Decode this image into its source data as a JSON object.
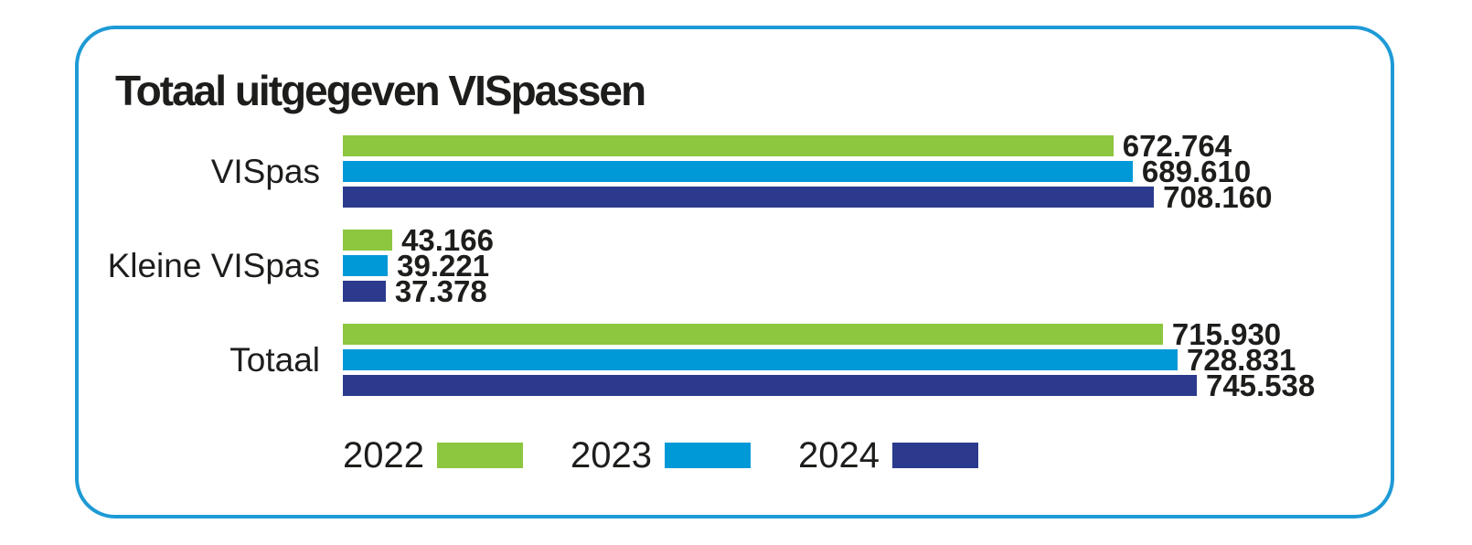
{
  "title": "Totaal uitgegeven VISpassen",
  "card": {
    "border_color": "#1e9ad6"
  },
  "chart_data": {
    "type": "bar",
    "orientation": "horizontal",
    "title": "Totaal uitgegeven VISpassen",
    "categories": [
      "VISpas",
      "Kleine VISpas",
      "Totaal"
    ],
    "series": [
      {
        "name": "2022",
        "color": "#8dc63f",
        "values": [
          672764,
          43166,
          715930
        ],
        "labels": [
          "672.764",
          "43.166",
          "715.930"
        ]
      },
      {
        "name": "2023",
        "color": "#0099d8",
        "values": [
          689610,
          39221,
          728831
        ],
        "labels": [
          "689.610",
          "39.221",
          "728.831"
        ]
      },
      {
        "name": "2024",
        "color": "#2b3a8d",
        "values": [
          708160,
          37378,
          745538
        ],
        "labels": [
          "708.160",
          "37.378",
          "745.538"
        ]
      }
    ],
    "xlim": [
      0,
      910000
    ],
    "value_labels_visible": true,
    "grid": false,
    "legend_position": "bottom",
    "text_color": "#1d1d1b"
  }
}
